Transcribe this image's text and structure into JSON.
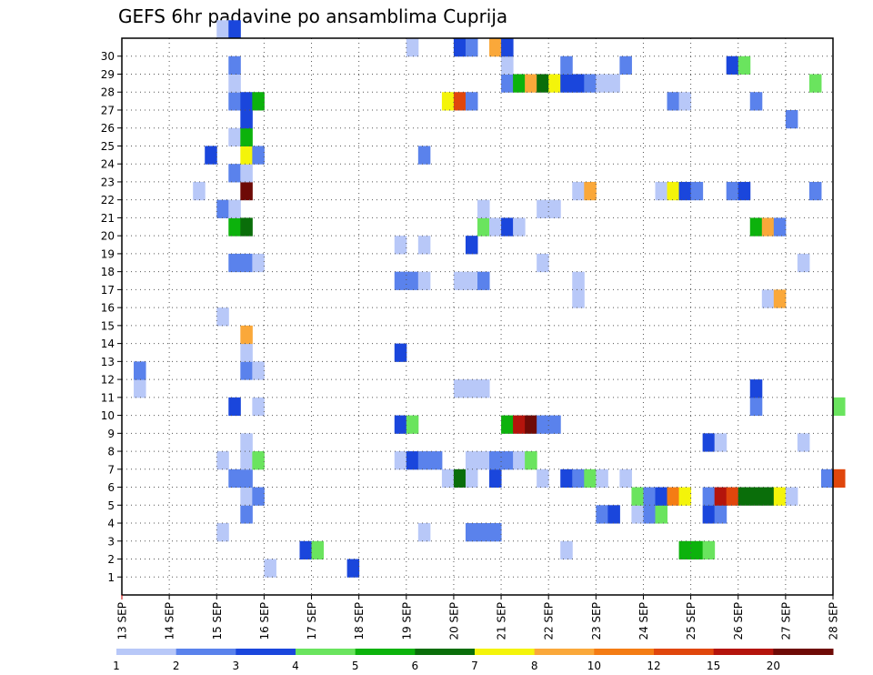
{
  "title": "GEFS 6hr padavine po ansamblima Cuprija",
  "chart_data": {
    "type": "heatmap",
    "title": "GEFS 6hr padavine po ansamblima Cuprija",
    "xlabel": "",
    "ylabel": "",
    "x_tick_labels": [
      "13 SEP",
      "14 SEP",
      "15 SEP",
      "16 SEP",
      "17 SEP",
      "18 SEP",
      "19 SEP",
      "20 SEP",
      "21 SEP",
      "22 SEP",
      "23 SEP",
      "24 SEP",
      "25 SEP",
      "26 SEP",
      "27 SEP",
      "28 SEP"
    ],
    "x_steps_per_day": 4,
    "y_tick_labels": [
      "1",
      "2",
      "3",
      "4",
      "5",
      "6",
      "7",
      "8",
      "9",
      "10",
      "11",
      "12",
      "13",
      "14",
      "15",
      "16",
      "17",
      "18",
      "19",
      "20",
      "21",
      "22",
      "23",
      "24",
      "25",
      "26",
      "27",
      "28",
      "29",
      "30"
    ],
    "grid": true,
    "legend": {
      "placement": "bottom",
      "labels": [
        "1",
        "2",
        "3",
        "4",
        "5",
        "6",
        "7",
        "8",
        "10",
        "12",
        "15",
        "20"
      ],
      "colors": [
        "#b8c8f8",
        "#5a82ec",
        "#1a46dc",
        "#6ae45e",
        "#0cb20c",
        "#0a6e0a",
        "#f4f40a",
        "#faa83a",
        "#f47c14",
        "#e0460c",
        "#b4140c",
        "#6e0a06"
      ]
    },
    "cells": [
      [
        1,
        12,
        1
      ],
      [
        1,
        19,
        3
      ],
      [
        11,
        1,
        1
      ],
      [
        12,
        1,
        2
      ],
      [
        2,
        15,
        3
      ],
      [
        2,
        16,
        4
      ],
      [
        2,
        37,
        1
      ],
      [
        2,
        47,
        5
      ],
      [
        2,
        48,
        5
      ],
      [
        2,
        49,
        4
      ],
      [
        3,
        8,
        1
      ],
      [
        3,
        25,
        1
      ],
      [
        3,
        29,
        2
      ],
      [
        3,
        30,
        2
      ],
      [
        3,
        31,
        2
      ],
      [
        4,
        10,
        2
      ],
      [
        4,
        40,
        2
      ],
      [
        4,
        41,
        3
      ],
      [
        4,
        43,
        1
      ],
      [
        4,
        44,
        2
      ],
      [
        4,
        45,
        4
      ],
      [
        4,
        49,
        3
      ],
      [
        4,
        50,
        2
      ],
      [
        5,
        10,
        1
      ],
      [
        5,
        11,
        2
      ],
      [
        5,
        43,
        4
      ],
      [
        5,
        44,
        2
      ],
      [
        5,
        45,
        3
      ],
      [
        5,
        46,
        9
      ],
      [
        5,
        47,
        7
      ],
      [
        5,
        49,
        2
      ],
      [
        5,
        50,
        11
      ],
      [
        5,
        51,
        10
      ],
      [
        5,
        52,
        6
      ],
      [
        5,
        53,
        6
      ],
      [
        5,
        54,
        6
      ],
      [
        5,
        55,
        7
      ],
      [
        5,
        56,
        1
      ],
      [
        6,
        9,
        2
      ],
      [
        6,
        10,
        2
      ],
      [
        6,
        27,
        1
      ],
      [
        6,
        28,
        6
      ],
      [
        6,
        29,
        1
      ],
      [
        6,
        31,
        3
      ],
      [
        6,
        35,
        1
      ],
      [
        6,
        37,
        3
      ],
      [
        6,
        38,
        2
      ],
      [
        6,
        39,
        4
      ],
      [
        6,
        40,
        1
      ],
      [
        6,
        42,
        1
      ],
      [
        6,
        59,
        2
      ],
      [
        6,
        60,
        10
      ],
      [
        7,
        8,
        1
      ],
      [
        7,
        10,
        1
      ],
      [
        7,
        11,
        4
      ],
      [
        7,
        23,
        1
      ],
      [
        7,
        24,
        3
      ],
      [
        7,
        25,
        2
      ],
      [
        7,
        26,
        2
      ],
      [
        7,
        29,
        1
      ],
      [
        7,
        30,
        1
      ],
      [
        7,
        31,
        2
      ],
      [
        7,
        32,
        2
      ],
      [
        7,
        33,
        1
      ],
      [
        7,
        34,
        4
      ],
      [
        8,
        10,
        1
      ],
      [
        8,
        49,
        3
      ],
      [
        8,
        50,
        1
      ],
      [
        8,
        57,
        1
      ],
      [
        9,
        23,
        3
      ],
      [
        9,
        24,
        4
      ],
      [
        9,
        32,
        5
      ],
      [
        9,
        33,
        11
      ],
      [
        9,
        34,
        12
      ],
      [
        9,
        35,
        2
      ],
      [
        9,
        36,
        2
      ],
      [
        10,
        9,
        3
      ],
      [
        10,
        11,
        1
      ],
      [
        10,
        53,
        2
      ],
      [
        10,
        60,
        4
      ],
      [
        11,
        28,
        1
      ],
      [
        11,
        29,
        1
      ],
      [
        11,
        30,
        1
      ],
      [
        11,
        53,
        3
      ],
      [
        12,
        10,
        2
      ],
      [
        12,
        11,
        1
      ],
      [
        13,
        10,
        1
      ],
      [
        13,
        23,
        3
      ],
      [
        14,
        10,
        8
      ],
      [
        15,
        8,
        1
      ],
      [
        16,
        38,
        1
      ],
      [
        16,
        54,
        1
      ],
      [
        16,
        55,
        8
      ],
      [
        17,
        23,
        2
      ],
      [
        17,
        24,
        2
      ],
      [
        17,
        25,
        1
      ],
      [
        17,
        28,
        1
      ],
      [
        17,
        29,
        1
      ],
      [
        17,
        30,
        2
      ],
      [
        17,
        38,
        1
      ],
      [
        18,
        9,
        2
      ],
      [
        18,
        10,
        2
      ],
      [
        18,
        11,
        1
      ],
      [
        18,
        35,
        1
      ],
      [
        18,
        57,
        1
      ],
      [
        19,
        23,
        1
      ],
      [
        19,
        25,
        1
      ],
      [
        19,
        29,
        3
      ],
      [
        20,
        9,
        5
      ],
      [
        20,
        10,
        6
      ],
      [
        20,
        30,
        4
      ],
      [
        20,
        31,
        1
      ],
      [
        20,
        32,
        3
      ],
      [
        20,
        33,
        1
      ],
      [
        20,
        53,
        5
      ],
      [
        20,
        54,
        8
      ],
      [
        20,
        55,
        2
      ],
      [
        21,
        8,
        2
      ],
      [
        21,
        9,
        1
      ],
      [
        21,
        30,
        1
      ],
      [
        21,
        35,
        1
      ],
      [
        21,
        36,
        1
      ],
      [
        22,
        6,
        1
      ],
      [
        22,
        10,
        12
      ],
      [
        22,
        38,
        1
      ],
      [
        22,
        39,
        8
      ],
      [
        22,
        45,
        1
      ],
      [
        22,
        46,
        7
      ],
      [
        22,
        47,
        3
      ],
      [
        22,
        48,
        2
      ],
      [
        22,
        51,
        2
      ],
      [
        22,
        52,
        3
      ],
      [
        22,
        58,
        2
      ],
      [
        23,
        9,
        2
      ],
      [
        23,
        10,
        1
      ],
      [
        24,
        7,
        3
      ],
      [
        24,
        10,
        7
      ],
      [
        24,
        11,
        2
      ],
      [
        24,
        25,
        2
      ],
      [
        25,
        9,
        1
      ],
      [
        25,
        10,
        5
      ],
      [
        26,
        10,
        3
      ],
      [
        26,
        56,
        2
      ],
      [
        27,
        9,
        2
      ],
      [
        27,
        10,
        3
      ],
      [
        27,
        11,
        5
      ],
      [
        27,
        27,
        7
      ],
      [
        27,
        28,
        10
      ],
      [
        27,
        29,
        2
      ],
      [
        27,
        46,
        2
      ],
      [
        27,
        47,
        1
      ],
      [
        27,
        53,
        2
      ],
      [
        28,
        9,
        1
      ],
      [
        28,
        32,
        2
      ],
      [
        28,
        33,
        5
      ],
      [
        28,
        34,
        8
      ],
      [
        28,
        35,
        6
      ],
      [
        28,
        36,
        7
      ],
      [
        28,
        37,
        3
      ],
      [
        28,
        38,
        3
      ],
      [
        28,
        39,
        2
      ],
      [
        28,
        40,
        1
      ],
      [
        28,
        41,
        1
      ],
      [
        28,
        58,
        4
      ],
      [
        29,
        9,
        2
      ],
      [
        29,
        32,
        1
      ],
      [
        29,
        37,
        2
      ],
      [
        29,
        42,
        2
      ],
      [
        29,
        51,
        3
      ],
      [
        29,
        52,
        4
      ],
      [
        30,
        24,
        1
      ],
      [
        30,
        28,
        3
      ],
      [
        30,
        29,
        2
      ],
      [
        30,
        31,
        8
      ],
      [
        30,
        32,
        3
      ],
      [
        31,
        8,
        1
      ],
      [
        31,
        9,
        3
      ]
    ]
  }
}
